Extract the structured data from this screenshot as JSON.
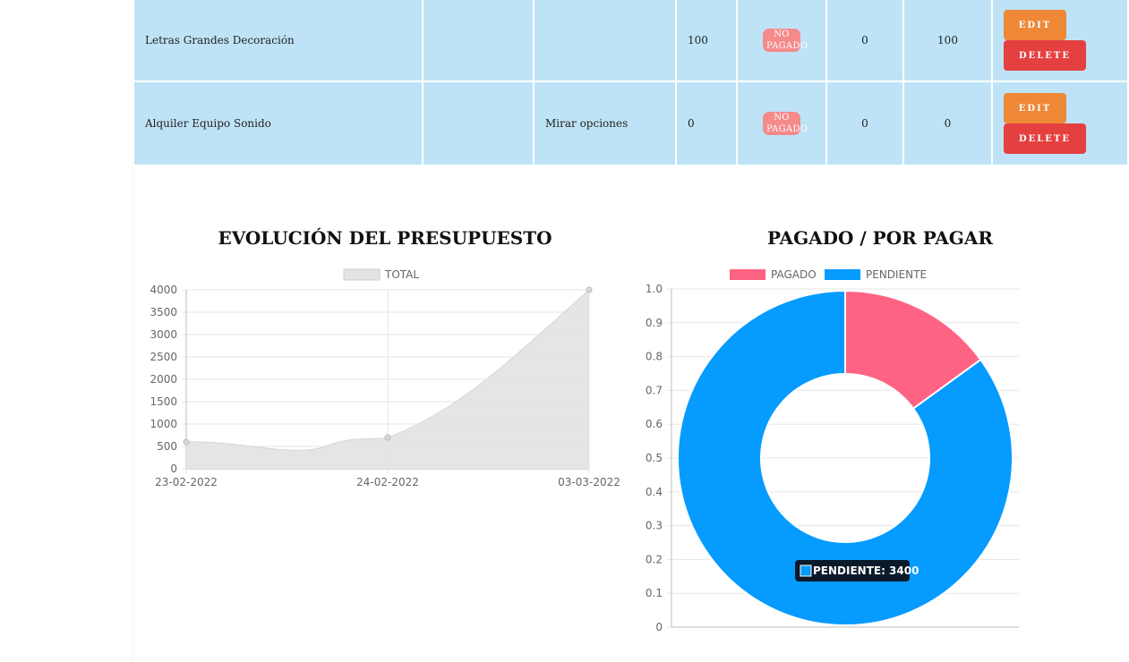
{
  "table": {
    "rows": [
      {
        "name": "Letras Grandes Decoración",
        "provider": "",
        "notes": "",
        "cost": "100",
        "status": "NO PAGADO",
        "paid": "0",
        "pending": "100",
        "edit": "EDIT",
        "delete": "DELETE"
      },
      {
        "name": "Alquiler Equipo Sonido",
        "provider": "",
        "notes": "Mirar opciones",
        "cost": "0",
        "status": "NO PAGADO",
        "paid": "0",
        "pending": "0",
        "edit": "EDIT",
        "delete": "DELETE"
      }
    ]
  },
  "charts": {
    "evolution_title": "EVOLUCIÓN DEL PRESUPUESTO",
    "paid_title": "PAGADO / POR PAGAR"
  },
  "chart_data": [
    {
      "type": "area",
      "title": "EVOLUCIÓN DEL PRESUPUESTO",
      "categories": [
        "23-02-2022",
        "24-02-2022",
        "03-03-2022"
      ],
      "series": [
        {
          "name": "TOTAL",
          "values": [
            600,
            700,
            4000
          ],
          "color": "#e4e4e4"
        }
      ],
      "ylim": [
        0,
        4000
      ],
      "yticks": [
        0,
        500,
        1000,
        1500,
        2000,
        2500,
        3000,
        3500,
        4000
      ],
      "grid": true,
      "legend": "top"
    },
    {
      "type": "pie",
      "title": "PAGADO / POR PAGAR",
      "labels": [
        "PAGADO",
        "PENDIENTE"
      ],
      "values": [
        600,
        3400
      ],
      "colors": [
        "#ff6384",
        "#059bff"
      ],
      "yticks": [
        "0",
        "0.1",
        "0.2",
        "0.3",
        "0.4",
        "0.5",
        "0.6",
        "0.7",
        "0.8",
        "0.9",
        "1.0"
      ],
      "tooltip": "PENDIENTE: 3400",
      "legend": "top"
    }
  ]
}
